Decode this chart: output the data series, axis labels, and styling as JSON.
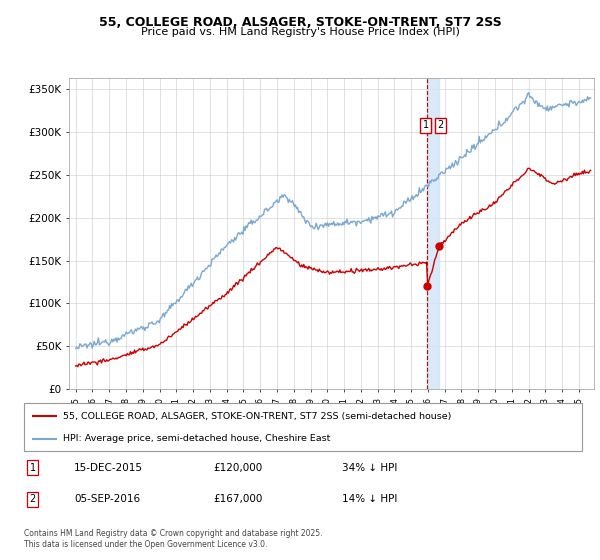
{
  "title": "55, COLLEGE ROAD, ALSAGER, STOKE-ON-TRENT, ST7 2SS",
  "subtitle": "Price paid vs. HM Land Registry's House Price Index (HPI)",
  "legend_entry1": "55, COLLEGE ROAD, ALSAGER, STOKE-ON-TRENT, ST7 2SS (semi-detached house)",
  "legend_entry2": "HPI: Average price, semi-detached house, Cheshire East",
  "annotation1_label": "1",
  "annotation1_date": "15-DEC-2015",
  "annotation1_price": "£120,000",
  "annotation1_hpi": "34% ↓ HPI",
  "annotation2_label": "2",
  "annotation2_date": "05-SEP-2016",
  "annotation2_price": "£167,000",
  "annotation2_hpi": "14% ↓ HPI",
  "footer": "Contains HM Land Registry data © Crown copyright and database right 2025.\nThis data is licensed under the Open Government Licence v3.0.",
  "color_red": "#cc0000",
  "color_blue": "#7aa8d2",
  "color_dashed": "#cc0000",
  "color_band": "#d0e4f5",
  "ylim_min": 0,
  "ylim_max": 362500,
  "yticks": [
    0,
    50000,
    100000,
    150000,
    200000,
    250000,
    300000,
    350000
  ],
  "ytick_labels": [
    "£0",
    "£50K",
    "£100K",
    "£150K",
    "£200K",
    "£250K",
    "£300K",
    "£350K"
  ],
  "sale1_x": 2015.96,
  "sale1_y": 120000,
  "sale2_x": 2016.67,
  "sale2_y": 167000,
  "vline_x1": 2015.96,
  "vline_x2": 2016.67,
  "xmin": 1994.6,
  "xmax": 2025.9
}
